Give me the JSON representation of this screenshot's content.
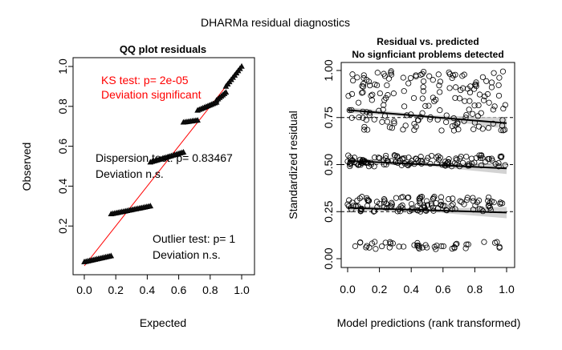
{
  "suptitle": "DHARMa residual diagnostics",
  "chart_data": [
    {
      "type": "scatter",
      "title": "QQ plot residuals",
      "xlabel": "Expected",
      "ylabel": "Observed",
      "xlim": [
        0,
        1
      ],
      "ylim": [
        0,
        1
      ],
      "xticks": [
        "0.0",
        "0.2",
        "0.4",
        "0.6",
        "0.8",
        "1.0"
      ],
      "yticks": [
        "0.2",
        "0.4",
        "0.6",
        "0.8",
        "1.0"
      ],
      "reference_line": {
        "from": [
          0,
          0
        ],
        "to": [
          1,
          1
        ],
        "color": "#ff0000"
      },
      "series": [
        {
          "marker": "triangle",
          "segments": [
            {
              "x": [
                0.0,
                0.17
              ],
              "y": [
                0.02,
                0.05
              ]
            },
            {
              "x": [
                0.17,
                0.42
              ],
              "y": [
                0.26,
                0.3
              ]
            },
            {
              "x": [
                0.42,
                0.63
              ],
              "y": [
                0.52,
                0.57
              ]
            },
            {
              "x": [
                0.63,
                0.72
              ],
              "y": [
                0.72,
                0.73
              ]
            },
            {
              "x": [
                0.72,
                0.84
              ],
              "y": [
                0.78,
                0.82
              ]
            },
            {
              "x": [
                0.84,
                0.9
              ],
              "y": [
                0.83,
                0.87
              ]
            },
            {
              "x": [
                0.9,
                1.0
              ],
              "y": [
                0.9,
                1.0
              ]
            }
          ]
        }
      ],
      "annotations": {
        "ks": {
          "line1": "KS test: p= 2e-05",
          "line2": "Deviation  significant",
          "color": "#ff0000"
        },
        "dispersion": {
          "line1": "Dispersion test: p= 0.83467",
          "line2": "Deviation n.s."
        },
        "outlier": {
          "line1": "Outlier test: p= 1",
          "line2": "Deviation  n.s."
        }
      }
    },
    {
      "type": "scatter",
      "title": "Residual vs. predicted",
      "subtitle": "No signficiant problems detected",
      "xlabel": "Model predictions (rank transformed)",
      "ylabel": "Standardized residual",
      "xlim": [
        0,
        1
      ],
      "ylim": [
        0,
        1
      ],
      "xticks": [
        "0.0",
        "0.2",
        "0.4",
        "0.6",
        "0.8",
        "1.0"
      ],
      "yticks": [
        "0.00",
        "0.25",
        "0.50",
        "0.75",
        "1.00"
      ],
      "reference_lines_y": [
        0.25,
        0.5,
        0.75
      ],
      "quantile_fits": [
        {
          "y_at_0": 0.27,
          "y_at_1": 0.245
        },
        {
          "y_at_0": 0.52,
          "y_at_1": 0.48
        },
        {
          "y_at_0": 0.79,
          "y_at_1": 0.72
        }
      ],
      "point_bands": [
        {
          "y_min": 0.05,
          "y_max": 0.09
        },
        {
          "y_min": 0.25,
          "y_max": 0.33
        },
        {
          "y_min": 0.49,
          "y_max": 0.55
        },
        {
          "y_min": 0.68,
          "y_max": 1.0
        }
      ]
    }
  ]
}
